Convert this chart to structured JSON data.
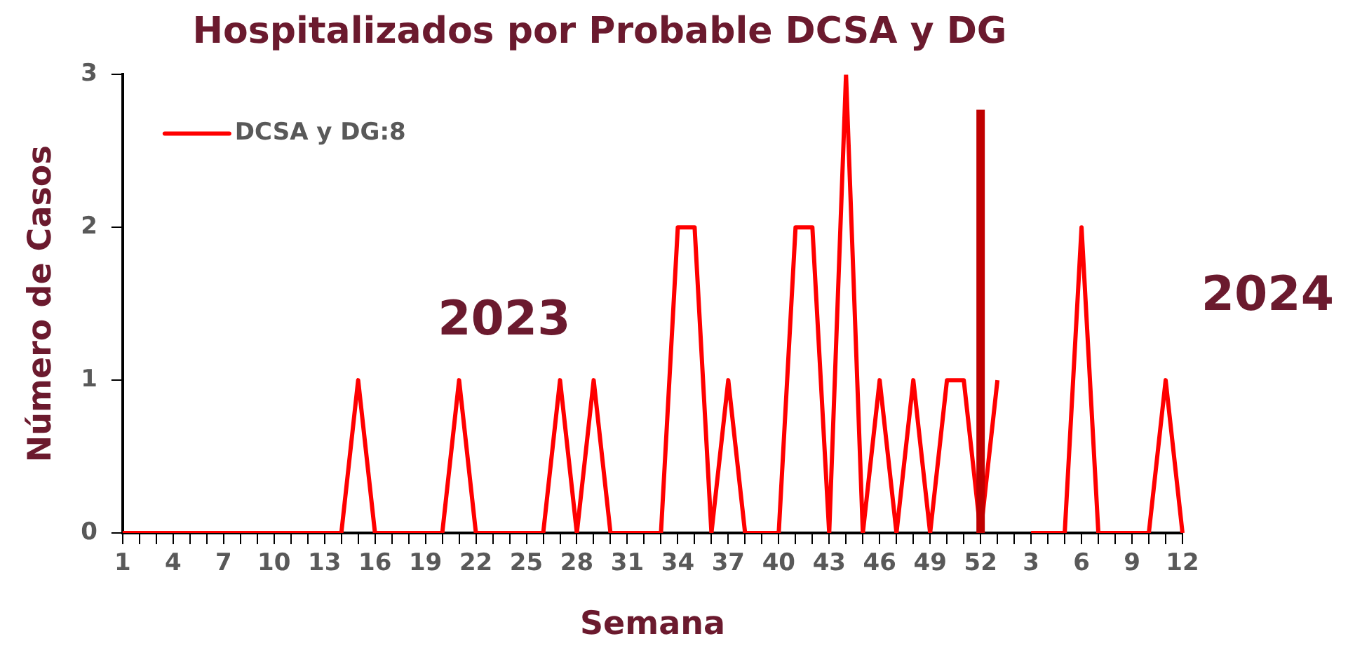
{
  "chart_data": {
    "type": "line",
    "title": "Hospitalizados por Probable DCSA y DG",
    "xlabel": "Semana",
    "ylabel": "Número de Casos",
    "categories": [
      "1",
      null,
      null,
      "4",
      null,
      null,
      "7",
      null,
      null,
      "10",
      null,
      null,
      "13",
      null,
      null,
      "16",
      null,
      null,
      "19",
      null,
      null,
      "22",
      null,
      null,
      "25",
      null,
      null,
      "28",
      null,
      null,
      "31",
      null,
      null,
      "34",
      null,
      null,
      "37",
      null,
      null,
      "40",
      null,
      null,
      "43",
      null,
      null,
      "46",
      null,
      null,
      "49",
      null,
      null,
      "52",
      null,
      null,
      "3",
      null,
      null,
      "6",
      null,
      null,
      "9",
      null,
      null,
      "12"
    ],
    "series": [
      {
        "name": "DCSA y DG:8",
        "color": "#ff0000",
        "values": [
          0,
          0,
          0,
          0,
          0,
          0,
          0,
          0,
          0,
          0,
          0,
          0,
          0,
          0,
          1,
          0,
          0,
          0,
          0,
          0,
          1,
          0,
          0,
          0,
          0,
          0,
          1,
          0,
          1,
          0,
          0,
          0,
          0,
          2,
          2,
          0,
          1,
          0,
          0,
          0,
          2,
          2,
          0,
          3,
          0,
          1,
          0,
          1,
          0,
          1,
          1,
          0,
          1,
          null,
          0,
          0,
          0,
          2,
          0,
          0,
          0,
          0,
          1,
          0
        ]
      }
    ],
    "ylim": [
      0,
      3
    ],
    "yticks": [
      0,
      1,
      2,
      3
    ],
    "grid": false,
    "legend": "top left",
    "marker": "none",
    "line_style": "solid",
    "ref_lines": [
      {
        "axis": "x",
        "value": "52",
        "color": "#c00000"
      }
    ],
    "annotations": [
      "2023",
      "2024"
    ]
  }
}
